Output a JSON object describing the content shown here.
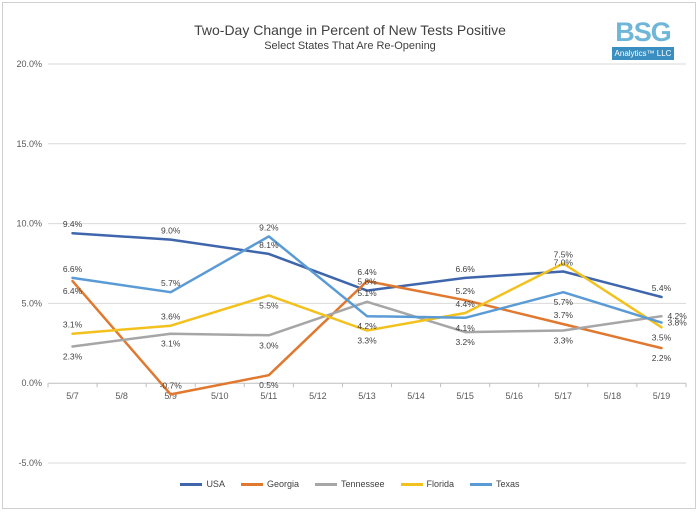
{
  "chart_data": {
    "type": "line",
    "title": "Two-Day Change in Percent of New Tests Positive",
    "subtitle": "Select States That Are Re-Opening",
    "xlabel": "",
    "ylabel": "",
    "ylim": [
      -5,
      20
    ],
    "yticks": [
      "-5.0%",
      "0.0%",
      "5.0%",
      "10.0%",
      "15.0%",
      "20.0%"
    ],
    "ytick_values": [
      -5,
      0,
      5,
      10,
      15,
      20
    ],
    "categories": [
      "5/7",
      "5/8",
      "5/9",
      "5/10",
      "5/11",
      "5/12",
      "5/13",
      "5/14",
      "5/15",
      "5/16",
      "5/17",
      "5/18",
      "5/19"
    ],
    "series": [
      {
        "name": "USA",
        "color": "#3f66ad",
        "x": [
          "5/7",
          "5/9",
          "5/11",
          "5/13",
          "5/15",
          "5/17",
          "5/19"
        ],
        "values": [
          9.4,
          9.0,
          8.1,
          5.8,
          6.6,
          7.0,
          5.4
        ],
        "labels": [
          "9.4%",
          "9.0%",
          "8.1%",
          "5.8%",
          "6.6%",
          "7.0%",
          "5.4%"
        ],
        "label_pos": [
          "above",
          "above",
          "above",
          "above",
          "above",
          "above",
          "above"
        ]
      },
      {
        "name": "Georgia",
        "color": "#e0782f",
        "x": [
          "5/7",
          "5/9",
          "5/11",
          "5/13",
          "5/15",
          "5/17",
          "5/19"
        ],
        "values": [
          6.4,
          -0.7,
          0.5,
          6.4,
          5.2,
          3.7,
          2.2
        ],
        "labels": [
          "6.4%",
          "-0.7%",
          "0.5%",
          "6.4%",
          "5.2%",
          "3.7%",
          "2.2%"
        ],
        "label_pos": [
          "below",
          "above",
          "below",
          "above",
          "above",
          "above",
          "below"
        ]
      },
      {
        "name": "Tennessee",
        "color": "#a6a6a6",
        "x": [
          "5/7",
          "5/9",
          "5/11",
          "5/13",
          "5/15",
          "5/17",
          "5/19"
        ],
        "values": [
          2.3,
          3.1,
          3.0,
          5.1,
          3.2,
          3.3,
          4.2
        ],
        "labels": [
          "2.3%",
          "3.1%",
          "3.0%",
          "5.1%",
          "3.2%",
          "3.3%",
          "4.2%"
        ],
        "label_pos": [
          "below",
          "below",
          "below",
          "above",
          "below",
          "below",
          "right"
        ]
      },
      {
        "name": "Florida",
        "color": "#f2c11e",
        "x": [
          "5/7",
          "5/9",
          "5/11",
          "5/13",
          "5/15",
          "5/17",
          "5/19"
        ],
        "values": [
          3.1,
          3.6,
          5.5,
          3.3,
          4.4,
          7.5,
          3.5
        ],
        "labels": [
          "3.1%",
          "3.6%",
          "5.5%",
          "3.3%",
          "4.4%",
          "7.5%",
          "3.5%"
        ],
        "label_pos": [
          "above",
          "above",
          "below",
          "below",
          "above",
          "above",
          "below"
        ]
      },
      {
        "name": "Texas",
        "color": "#5b9bd5",
        "x": [
          "5/7",
          "5/9",
          "5/11",
          "5/13",
          "5/15",
          "5/17",
          "5/19"
        ],
        "values": [
          6.6,
          5.7,
          9.2,
          4.2,
          4.1,
          5.7,
          3.8
        ],
        "labels": [
          "6.6%",
          "5.7%",
          "9.2%",
          "4.2%",
          "4.1%",
          "5.7%",
          "3.8%"
        ],
        "label_pos": [
          "above",
          "above",
          "above",
          "below",
          "below",
          "below",
          "right"
        ]
      }
    ],
    "legend": [
      "USA",
      "Georgia",
      "Tennessee",
      "Florida",
      "Texas"
    ],
    "legend_position": "bottom",
    "grid": "horizontal"
  },
  "logo": {
    "letters": "BSG",
    "text": "Analytics™ LLC"
  }
}
